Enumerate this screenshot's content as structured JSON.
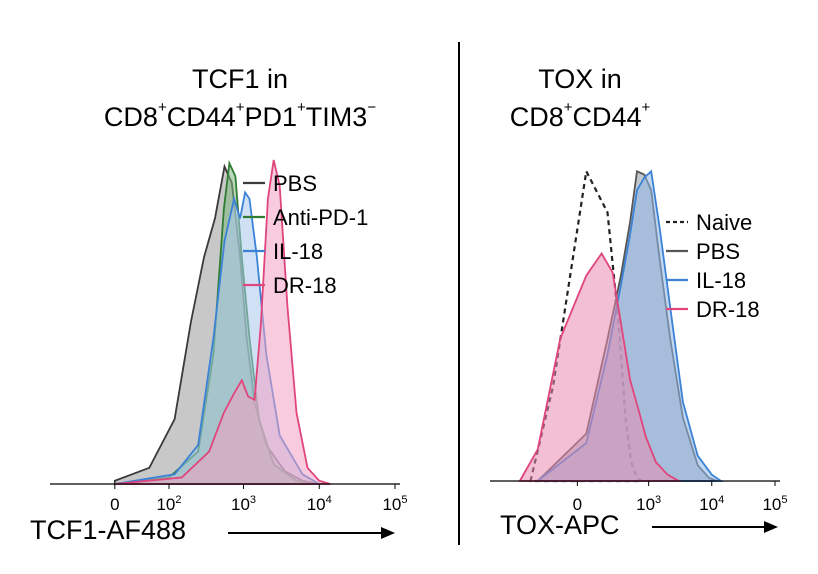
{
  "panels": [
    {
      "title_line1": "TCF1 in",
      "title_line2_parts": [
        "CD8",
        "+",
        "CD44",
        "+",
        "PD1",
        "+",
        "TIM3",
        "−"
      ],
      "axis_label": "TCF1-AF488"
    },
    {
      "title_line1": "TOX in",
      "title_line2_parts": [
        "CD8",
        "+",
        "CD44",
        "+"
      ],
      "axis_label": "TOX-APC"
    }
  ],
  "chart_data": [
    {
      "type": "area",
      "xlabel": "TCF1-AF488",
      "x_scale": "biexponential",
      "xticks": [
        {
          "value": 0,
          "label": "0"
        },
        {
          "value": 100,
          "label": "10",
          "sup": "2"
        },
        {
          "value": 1000,
          "label": "10",
          "sup": "3"
        },
        {
          "value": 10000,
          "label": "10",
          "sup": "4"
        },
        {
          "value": 100000,
          "label": "10",
          "sup": "5"
        }
      ],
      "legend_position": "top-right",
      "series": [
        {
          "name": "PBS",
          "line_color": "#3a3a3a",
          "fill_color": "#9a9a9a",
          "points": [
            [
              0,
              0.01
            ],
            [
              50,
              0.05
            ],
            [
              120,
              0.2
            ],
            [
              200,
              0.5
            ],
            [
              300,
              0.7
            ],
            [
              420,
              0.82
            ],
            [
              560,
              0.98
            ],
            [
              700,
              0.93
            ],
            [
              900,
              0.7
            ],
            [
              1100,
              0.45
            ],
            [
              1400,
              0.25
            ],
            [
              2000,
              0.12
            ],
            [
              3500,
              0.04
            ],
            [
              6000,
              0.01
            ],
            [
              10000,
              0
            ]
          ]
        },
        {
          "name": "Anti-PD-1",
          "line_color": "#2e7d32",
          "fill_color": "#7fb87f",
          "points": [
            [
              0,
              0.0
            ],
            [
              100,
              0.02
            ],
            [
              250,
              0.1
            ],
            [
              400,
              0.4
            ],
            [
              550,
              0.85
            ],
            [
              650,
              0.99
            ],
            [
              780,
              0.95
            ],
            [
              950,
              0.7
            ],
            [
              1200,
              0.45
            ],
            [
              1600,
              0.2
            ],
            [
              2500,
              0.06
            ],
            [
              5000,
              0.01
            ],
            [
              8000,
              0
            ]
          ]
        },
        {
          "name": "IL-18",
          "line_color": "#3b82d6",
          "fill_color": "#a9c9ee",
          "points": [
            [
              0,
              0.0
            ],
            [
              120,
              0.03
            ],
            [
              250,
              0.12
            ],
            [
              400,
              0.45
            ],
            [
              560,
              0.75
            ],
            [
              750,
              0.88
            ],
            [
              900,
              0.82
            ],
            [
              1050,
              0.9
            ],
            [
              1200,
              0.88
            ],
            [
              1500,
              0.7
            ],
            [
              2000,
              0.4
            ],
            [
              3000,
              0.15
            ],
            [
              6000,
              0.03
            ],
            [
              10000,
              0
            ]
          ]
        },
        {
          "name": "DR-18",
          "line_color": "#e0457b",
          "fill_color": "#f2a3c3",
          "points": [
            [
              0,
              0.0
            ],
            [
              150,
              0.02
            ],
            [
              350,
              0.1
            ],
            [
              550,
              0.22
            ],
            [
              750,
              0.28
            ],
            [
              950,
              0.32
            ],
            [
              1150,
              0.27
            ],
            [
              1400,
              0.26
            ],
            [
              1700,
              0.5
            ],
            [
              2100,
              0.88
            ],
            [
              2500,
              1.0
            ],
            [
              3000,
              0.92
            ],
            [
              3800,
              0.55
            ],
            [
              5000,
              0.22
            ],
            [
              7000,
              0.05
            ],
            [
              10000,
              0.01
            ],
            [
              14000,
              0
            ]
          ]
        }
      ]
    },
    {
      "type": "area",
      "xlabel": "TOX-APC",
      "x_scale": "biexponential",
      "xticks": [
        {
          "value": 0,
          "label": "0"
        },
        {
          "value": 1000,
          "label": "10",
          "sup": "3"
        },
        {
          "value": 10000,
          "label": "10",
          "sup": "4"
        },
        {
          "value": 100000,
          "label": "10",
          "sup": "5"
        }
      ],
      "legend_position": "right",
      "series": [
        {
          "name": "Naive",
          "line_color": "#222222",
          "dashed": true,
          "fill_color": null,
          "points": [
            [
              -400,
              0
            ],
            [
              -150,
              0.3
            ],
            [
              50,
              0.98
            ],
            [
              200,
              0.85
            ],
            [
              320,
              0.5
            ],
            [
              420,
              0.2
            ],
            [
              520,
              0.06
            ],
            [
              650,
              0.01
            ],
            [
              800,
              0
            ]
          ]
        },
        {
          "name": "PBS",
          "line_color": "#555555",
          "fill_color": "#8e9aa8",
          "points": [
            [
              -300,
              0
            ],
            [
              50,
              0.15
            ],
            [
              200,
              0.45
            ],
            [
              350,
              0.65
            ],
            [
              500,
              0.82
            ],
            [
              650,
              0.98
            ],
            [
              850,
              0.97
            ],
            [
              1100,
              0.92
            ],
            [
              1500,
              0.7
            ],
            [
              2200,
              0.45
            ],
            [
              3500,
              0.2
            ],
            [
              6000,
              0.05
            ],
            [
              9000,
              0.01
            ],
            [
              12000,
              0
            ]
          ]
        },
        {
          "name": "IL-18",
          "line_color": "#3b82d6",
          "fill_color": "#8fb6e6",
          "points": [
            [
              -300,
              0
            ],
            [
              50,
              0.12
            ],
            [
              200,
              0.4
            ],
            [
              350,
              0.62
            ],
            [
              500,
              0.78
            ],
            [
              650,
              0.92
            ],
            [
              850,
              0.96
            ],
            [
              1100,
              0.98
            ],
            [
              1500,
              0.8
            ],
            [
              2200,
              0.55
            ],
            [
              3500,
              0.25
            ],
            [
              6000,
              0.08
            ],
            [
              10000,
              0.02
            ],
            [
              14000,
              0
            ]
          ]
        },
        {
          "name": "DR-18",
          "line_color": "#e0457b",
          "fill_color": "#e78ab0",
          "points": [
            [
              -600,
              0
            ],
            [
              -300,
              0.1
            ],
            [
              -100,
              0.45
            ],
            [
              50,
              0.65
            ],
            [
              150,
              0.72
            ],
            [
              250,
              0.66
            ],
            [
              350,
              0.5
            ],
            [
              500,
              0.32
            ],
            [
              700,
              0.22
            ],
            [
              900,
              0.14
            ],
            [
              1300,
              0.06
            ],
            [
              2000,
              0.02
            ],
            [
              3000,
              0
            ]
          ]
        }
      ]
    }
  ]
}
